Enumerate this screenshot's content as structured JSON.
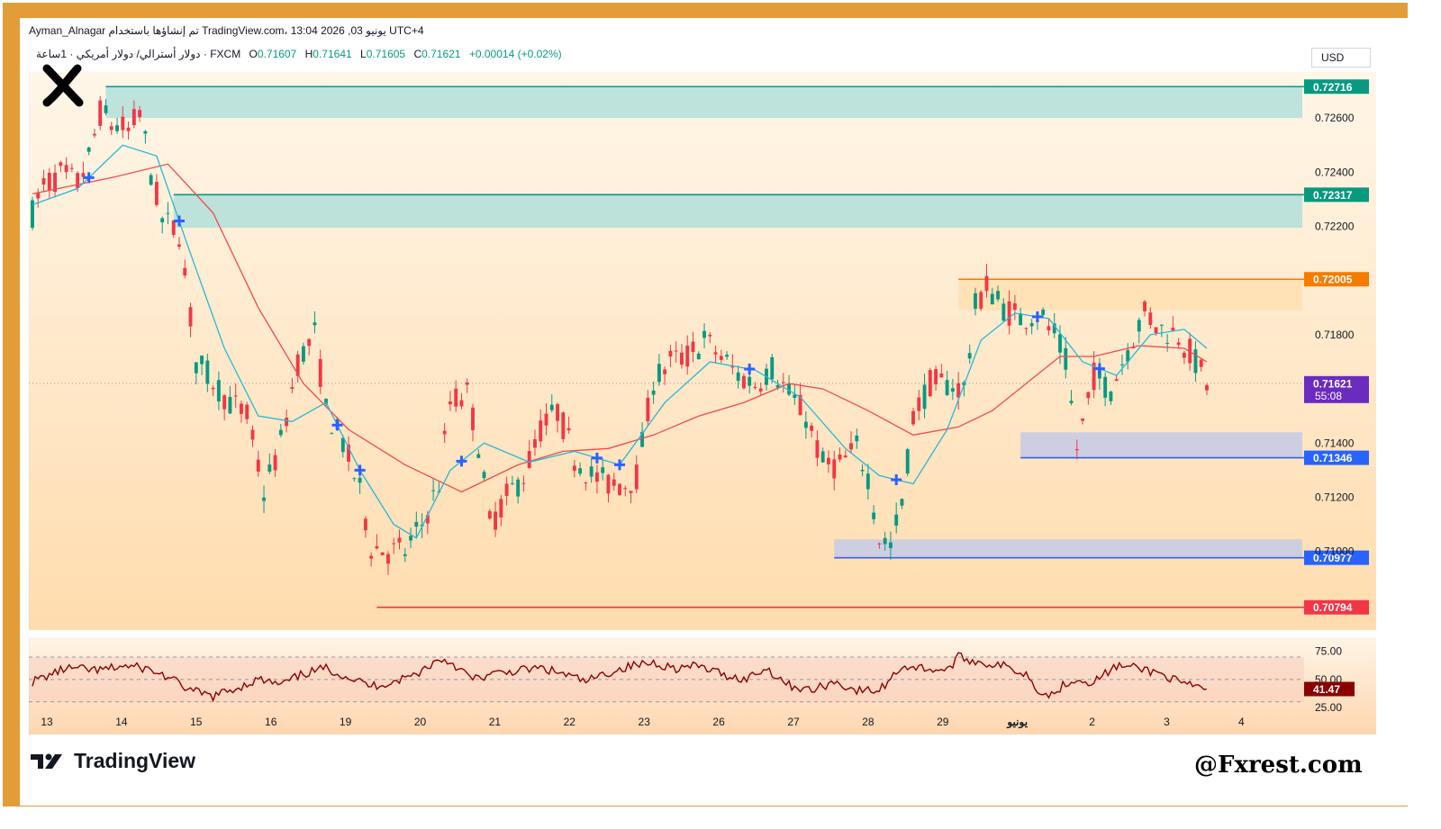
{
  "header": {
    "line1": "Ayman_Alnagar تم إنشاؤها باستخدام TradingView.com، 13:04 2026 ,03 يونيو UTC+4",
    "symbol": "دولار أسترالي/ دولار أمريكي · 1ساعة · FXCM",
    "o_label": "O",
    "o": "0.71607",
    "h_label": "H",
    "h": "0.71641",
    "l_label": "L",
    "l": "0.71605",
    "c_label": "C",
    "c": "0.71621",
    "change": "+0.00014 (+0.02%)"
  },
  "currency": "USD",
  "watermark_left": "TradingView",
  "watermark_right": "@Fxrest.com",
  "colors": {
    "bull": "#089981",
    "bear": "#f23645",
    "fast_ma": "#26b8d8",
    "slow_ma": "#f04a4a",
    "marker": "#2962ff",
    "frame": "#e29d38",
    "rsi": "#8b0000"
  },
  "chart_data": {
    "type": "candlestick",
    "symbol": "AUD/USD",
    "timeframe": "1h",
    "ylim": [
      0.7071,
      0.7277
    ],
    "y_ticks": [
      "0.72600",
      "0.72400",
      "0.72200",
      "0.71800",
      "0.71400",
      "0.71200",
      "0.71000"
    ],
    "x_ticks": [
      "13",
      "14",
      "15",
      "16",
      "19",
      "20",
      "21",
      "22",
      "23",
      "26",
      "27",
      "28",
      "29",
      "يونيو",
      "2",
      "3",
      "4"
    ],
    "price_path": [
      [
        0,
        0.7225
      ],
      [
        2,
        0.7235
      ],
      [
        5,
        0.7239
      ],
      [
        8,
        0.7236
      ],
      [
        10,
        0.7245
      ],
      [
        12,
        0.7262
      ],
      [
        14,
        0.7258
      ],
      [
        17,
        0.7255
      ],
      [
        19,
        0.7262
      ],
      [
        21,
        0.724
      ],
      [
        23,
        0.7222
      ],
      [
        26,
        0.7218
      ],
      [
        29,
        0.717
      ],
      [
        32,
        0.7163
      ],
      [
        35,
        0.7155
      ],
      [
        38,
        0.715
      ],
      [
        41,
        0.7122
      ],
      [
        44,
        0.714
      ],
      [
        47,
        0.717
      ],
      [
        50,
        0.718
      ],
      [
        52,
        0.7152
      ],
      [
        55,
        0.714
      ],
      [
        58,
        0.7122
      ],
      [
        60,
        0.7102
      ],
      [
        63,
        0.71
      ],
      [
        66,
        0.71
      ],
      [
        69,
        0.711
      ],
      [
        72,
        0.7125
      ],
      [
        74,
        0.7155
      ],
      [
        77,
        0.7158
      ],
      [
        79,
        0.714
      ],
      [
        81,
        0.711
      ],
      [
        84,
        0.712
      ],
      [
        87,
        0.7128
      ],
      [
        90,
        0.7145
      ],
      [
        93,
        0.7152
      ],
      [
        96,
        0.7135
      ],
      [
        99,
        0.7128
      ],
      [
        102,
        0.7125
      ],
      [
        105,
        0.7125
      ],
      [
        107,
        0.7128
      ],
      [
        110,
        0.7163
      ],
      [
        113,
        0.717
      ],
      [
        116,
        0.7172
      ],
      [
        119,
        0.7178
      ],
      [
        122,
        0.7172
      ],
      [
        125,
        0.7165
      ],
      [
        128,
        0.7162
      ],
      [
        131,
        0.7168
      ],
      [
        134,
        0.7158
      ],
      [
        137,
        0.715
      ],
      [
        140,
        0.7132
      ],
      [
        143,
        0.7132
      ],
      [
        146,
        0.7138
      ],
      [
        148,
        0.7128
      ],
      [
        150,
        0.7105
      ],
      [
        152,
        0.7102
      ],
      [
        154,
        0.7118
      ],
      [
        156,
        0.715
      ],
      [
        159,
        0.7162
      ],
      [
        162,
        0.7162
      ],
      [
        165,
        0.716
      ],
      [
        167,
        0.719
      ],
      [
        169,
        0.7198
      ],
      [
        172,
        0.719
      ],
      [
        175,
        0.7186
      ],
      [
        178,
        0.7188
      ],
      [
        181,
        0.718
      ],
      [
        183,
        0.717
      ],
      [
        185,
        0.7138
      ],
      [
        188,
        0.7165
      ],
      [
        191,
        0.716
      ],
      [
        194,
        0.7175
      ],
      [
        197,
        0.7188
      ],
      [
        200,
        0.7182
      ],
      [
        203,
        0.718
      ],
      [
        206,
        0.717
      ],
      [
        208,
        0.7162
      ]
    ],
    "fast_ma_path": [
      [
        0,
        0.7228
      ],
      [
        8,
        0.7234
      ],
      [
        16,
        0.725
      ],
      [
        22,
        0.7246
      ],
      [
        28,
        0.721
      ],
      [
        34,
        0.7175
      ],
      [
        40,
        0.715
      ],
      [
        46,
        0.7148
      ],
      [
        52,
        0.7155
      ],
      [
        58,
        0.713
      ],
      [
        64,
        0.711
      ],
      [
        68,
        0.7105
      ],
      [
        74,
        0.713
      ],
      [
        80,
        0.714
      ],
      [
        88,
        0.7133
      ],
      [
        96,
        0.7137
      ],
      [
        104,
        0.7132
      ],
      [
        112,
        0.7155
      ],
      [
        120,
        0.717
      ],
      [
        128,
        0.7167
      ],
      [
        136,
        0.7157
      ],
      [
        144,
        0.7138
      ],
      [
        150,
        0.7128
      ],
      [
        156,
        0.7125
      ],
      [
        162,
        0.7145
      ],
      [
        168,
        0.7178
      ],
      [
        174,
        0.7188
      ],
      [
        180,
        0.7186
      ],
      [
        186,
        0.717
      ],
      [
        192,
        0.7165
      ],
      [
        198,
        0.718
      ],
      [
        204,
        0.7182
      ],
      [
        208,
        0.7175
      ]
    ],
    "slow_ma_path": [
      [
        0,
        0.7232
      ],
      [
        14,
        0.7238
      ],
      [
        24,
        0.7243
      ],
      [
        32,
        0.7225
      ],
      [
        40,
        0.719
      ],
      [
        48,
        0.7162
      ],
      [
        56,
        0.7145
      ],
      [
        66,
        0.7132
      ],
      [
        76,
        0.7122
      ],
      [
        86,
        0.7132
      ],
      [
        94,
        0.7137
      ],
      [
        102,
        0.7138
      ],
      [
        110,
        0.7143
      ],
      [
        118,
        0.715
      ],
      [
        126,
        0.7155
      ],
      [
        134,
        0.7162
      ],
      [
        140,
        0.716
      ],
      [
        148,
        0.7152
      ],
      [
        156,
        0.7143
      ],
      [
        164,
        0.7146
      ],
      [
        170,
        0.7152
      ],
      [
        176,
        0.7162
      ],
      [
        182,
        0.7172
      ],
      [
        188,
        0.7172
      ],
      [
        196,
        0.7176
      ],
      [
        204,
        0.7175
      ],
      [
        208,
        0.717
      ]
    ],
    "bars_total": 208,
    "current_price": "0.71621",
    "countdown": "55:08",
    "levels": [
      {
        "price": 0.72716,
        "label": "0.72716",
        "color": "#089981",
        "start": 13
      },
      {
        "price": 0.72317,
        "label": "0.72317",
        "color": "#089981",
        "start": 25
      },
      {
        "price": 0.72005,
        "label": "0.72005",
        "color": "#f57c00",
        "start": 164
      },
      {
        "price": 0.71346,
        "label": "0.71346",
        "color": "#2962ff",
        "start": 175
      },
      {
        "price": 0.70977,
        "label": "0.70977",
        "color": "#2962ff",
        "start": 142
      },
      {
        "price": 0.70794,
        "label": "0.70794",
        "color": "#f23645",
        "start": 61
      }
    ],
    "zones": [
      {
        "from": 0.72716,
        "to": 0.726,
        "start": 13,
        "color": "#b2dfdb"
      },
      {
        "from": 0.72317,
        "to": 0.72195,
        "start": 25,
        "color": "#b2dfdb"
      },
      {
        "from": 0.72005,
        "to": 0.7189,
        "start": 164,
        "color": "#ffe0b2"
      },
      {
        "from": 0.7144,
        "to": 0.71346,
        "start": 175,
        "color": "#c5cae9"
      },
      {
        "from": 0.71045,
        "to": 0.70977,
        "start": 142,
        "color": "#c5cae9"
      }
    ],
    "markers": [
      10,
      26,
      54,
      58,
      76,
      100,
      104,
      127,
      153,
      178,
      189
    ],
    "rsi": {
      "ylim": [
        25,
        78
      ],
      "ticks": [
        "75.00",
        "50.00",
        "25.00"
      ],
      "value": "41.47",
      "levels": [
        70,
        50,
        30
      ],
      "path": [
        [
          0,
          48
        ],
        [
          6,
          60
        ],
        [
          12,
          58
        ],
        [
          16,
          62
        ],
        [
          20,
          60
        ],
        [
          24,
          52
        ],
        [
          28,
          40
        ],
        [
          32,
          35
        ],
        [
          36,
          42
        ],
        [
          40,
          50
        ],
        [
          44,
          45
        ],
        [
          48,
          55
        ],
        [
          52,
          60
        ],
        [
          56,
          52
        ],
        [
          60,
          44
        ],
        [
          64,
          48
        ],
        [
          68,
          55
        ],
        [
          72,
          68
        ],
        [
          74,
          66
        ],
        [
          78,
          50
        ],
        [
          82,
          55
        ],
        [
          86,
          58
        ],
        [
          90,
          60
        ],
        [
          94,
          55
        ],
        [
          98,
          48
        ],
        [
          102,
          56
        ],
        [
          106,
          62
        ],
        [
          110,
          65
        ],
        [
          114,
          60
        ],
        [
          118,
          62
        ],
        [
          122,
          55
        ],
        [
          126,
          50
        ],
        [
          130,
          60
        ],
        [
          134,
          45
        ],
        [
          138,
          40
        ],
        [
          142,
          48
        ],
        [
          146,
          40
        ],
        [
          150,
          40
        ],
        [
          154,
          62
        ],
        [
          158,
          60
        ],
        [
          162,
          58
        ],
        [
          164,
          70
        ],
        [
          168,
          65
        ],
        [
          172,
          62
        ],
        [
          176,
          55
        ],
        [
          178,
          42
        ],
        [
          180,
          35
        ],
        [
          184,
          50
        ],
        [
          188,
          48
        ],
        [
          192,
          62
        ],
        [
          196,
          60
        ],
        [
          200,
          55
        ],
        [
          204,
          45
        ],
        [
          208,
          42
        ]
      ]
    }
  }
}
